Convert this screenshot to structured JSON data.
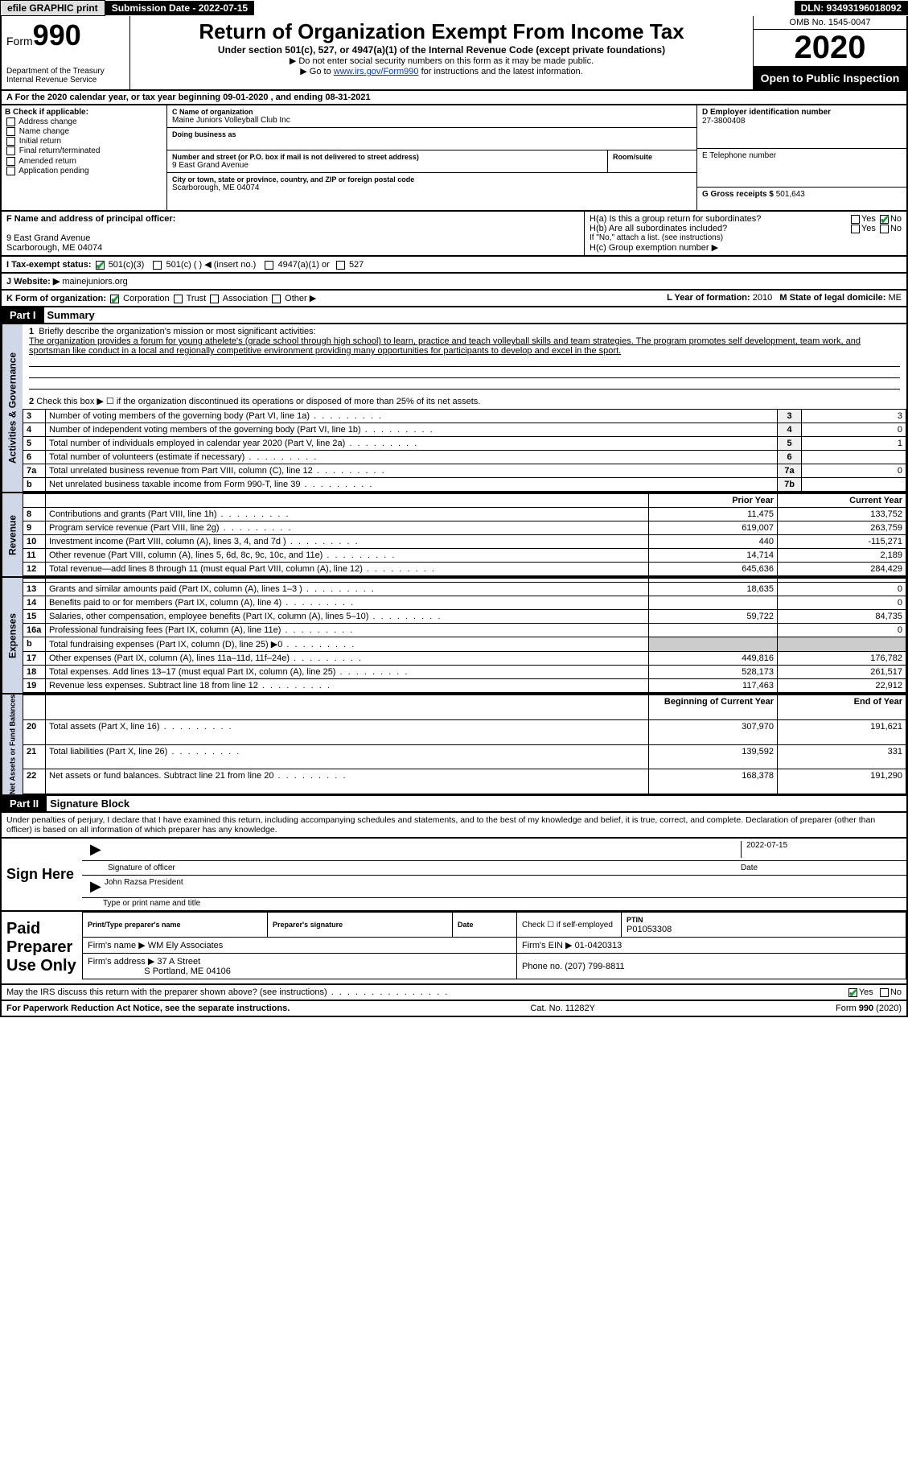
{
  "topbar": {
    "efile": "efile GRAPHIC print",
    "submission_label": "Submission Date - 2022-07-15",
    "dln": "DLN: 93493196018092"
  },
  "header": {
    "form_word": "Form",
    "form_num": "990",
    "dept": "Department of the Treasury\nInternal Revenue Service",
    "title": "Return of Organization Exempt From Income Tax",
    "sub1": "Under section 501(c), 527, or 4947(a)(1) of the Internal Revenue Code (except private foundations)",
    "sub2": "▶ Do not enter social security numbers on this form as it may be made public.",
    "sub3_pre": "▶ Go to ",
    "sub3_link": "www.irs.gov/Form990",
    "sub3_post": " for instructions and the latest information.",
    "omb": "OMB No. 1545-0047",
    "year": "2020",
    "open": "Open to Public Inspection"
  },
  "rowA": {
    "text": "A For the 2020 calendar year, or tax year beginning 09-01-2020    , and ending 08-31-2021"
  },
  "colB": {
    "head": "B Check if applicable:",
    "addr_change": "Address change",
    "name_change": "Name change",
    "initial": "Initial return",
    "final": "Final return/terminated",
    "amended": "Amended return",
    "app_pending": "Application pending"
  },
  "colC": {
    "name_label": "C Name of organization",
    "name": "Maine Juniors Volleyball Club Inc",
    "dba_label": "Doing business as",
    "street_label": "Number and street (or P.O. box if mail is not delivered to street address)",
    "street": "9 East Grand Avenue",
    "room_label": "Room/suite",
    "city_label": "City or town, state or province, country, and ZIP or foreign postal code",
    "city": "Scarborough, ME  04074"
  },
  "colD": {
    "ein_label": "D Employer identification number",
    "ein": "27-3800408",
    "phone_label": "E Telephone number",
    "gross_label": "G Gross receipts $",
    "gross": "501,643"
  },
  "secF": {
    "f_label": "F  Name and address of principal officer:",
    "f_addr1": "9 East Grand Avenue",
    "f_addr2": "Scarborough, ME  04074",
    "ha": "H(a)  Is this a group return for subordinates?",
    "hb": "H(b)  Are all subordinates included?",
    "hb_note": "If \"No,\" attach a list. (see instructions)",
    "hc": "H(c)  Group exemption number ▶",
    "yes": "Yes",
    "no": "No"
  },
  "rowI": {
    "label": "I   Tax-exempt status:",
    "c3": "501(c)(3)",
    "c": "501(c) (  ) ◀ (insert no.)",
    "a1": "4947(a)(1) or",
    "s527": "527"
  },
  "rowJ": {
    "label": "J   Website: ▶",
    "val": "mainejuniors.org"
  },
  "rowK": {
    "label": "K Form of organization:",
    "corp": "Corporation",
    "trust": "Trust",
    "assoc": "Association",
    "other": "Other ▶",
    "l_label": "L Year of formation:",
    "l_val": "2010",
    "m_label": "M State of legal domicile:",
    "m_val": "ME"
  },
  "partI": {
    "head": "Part I",
    "title": "Summary",
    "q1_label": "1",
    "q1": "Briefly describe the organization's mission or most significant activities:",
    "q1_text": "The organization provides a forum for young athelete's (grade school through high school) to learn, practice and teach volleyball skills and team strategies. The program promotes self development, team work, and sportsman like conduct in a local and regionally competitive environment providing many opportunities for participants to develop and excel in the sport.",
    "q2": "Check this box ▶ ☐  if the organization discontinued its operations or disposed of more than 25% of its net assets.",
    "rows_gov": [
      {
        "n": "3",
        "t": "Number of voting members of the governing body (Part VI, line 1a)",
        "c": "3",
        "v": "3"
      },
      {
        "n": "4",
        "t": "Number of independent voting members of the governing body (Part VI, line 1b)",
        "c": "4",
        "v": "0"
      },
      {
        "n": "5",
        "t": "Total number of individuals employed in calendar year 2020 (Part V, line 2a)",
        "c": "5",
        "v": "1"
      },
      {
        "n": "6",
        "t": "Total number of volunteers (estimate if necessary)",
        "c": "6",
        "v": ""
      },
      {
        "n": "7a",
        "t": "Total unrelated business revenue from Part VIII, column (C), line 12",
        "c": "7a",
        "v": "0"
      },
      {
        "n": "b",
        "t": "Net unrelated business taxable income from Form 990-T, line 39",
        "c": "7b",
        "v": ""
      }
    ],
    "tab_gov": "Activities & Governance",
    "tab_rev": "Revenue",
    "tab_exp": "Expenses",
    "tab_net": "Net Assets or Fund Balances",
    "col_prior": "Prior Year",
    "col_curr": "Current Year",
    "rows_rev": [
      {
        "n": "8",
        "t": "Contributions and grants (Part VIII, line 1h)",
        "p": "11,475",
        "c": "133,752"
      },
      {
        "n": "9",
        "t": "Program service revenue (Part VIII, line 2g)",
        "p": "619,007",
        "c": "263,759"
      },
      {
        "n": "10",
        "t": "Investment income (Part VIII, column (A), lines 3, 4, and 7d )",
        "p": "440",
        "c": "-115,271"
      },
      {
        "n": "11",
        "t": "Other revenue (Part VIII, column (A), lines 5, 6d, 8c, 9c, 10c, and 11e)",
        "p": "14,714",
        "c": "2,189"
      },
      {
        "n": "12",
        "t": "Total revenue—add lines 8 through 11 (must equal Part VIII, column (A), line 12)",
        "p": "645,636",
        "c": "284,429"
      }
    ],
    "rows_exp": [
      {
        "n": "13",
        "t": "Grants and similar amounts paid (Part IX, column (A), lines 1–3 )",
        "p": "18,635",
        "c": "0"
      },
      {
        "n": "14",
        "t": "Benefits paid to or for members (Part IX, column (A), line 4)",
        "p": "",
        "c": "0"
      },
      {
        "n": "15",
        "t": "Salaries, other compensation, employee benefits (Part IX, column (A), lines 5–10)",
        "p": "59,722",
        "c": "84,735"
      },
      {
        "n": "16a",
        "t": "Professional fundraising fees (Part IX, column (A), line 11e)",
        "p": "",
        "c": "0"
      },
      {
        "n": "b",
        "t": "Total fundraising expenses (Part IX, column (D), line 25) ▶0",
        "p": "__shade__",
        "c": "__shade__"
      },
      {
        "n": "17",
        "t": "Other expenses (Part IX, column (A), lines 11a–11d, 11f–24e)",
        "p": "449,816",
        "c": "176,782"
      },
      {
        "n": "18",
        "t": "Total expenses. Add lines 13–17 (must equal Part IX, column (A), line 25)",
        "p": "528,173",
        "c": "261,517"
      },
      {
        "n": "19",
        "t": "Revenue less expenses. Subtract line 18 from line 12",
        "p": "117,463",
        "c": "22,912"
      }
    ],
    "col_begin": "Beginning of Current Year",
    "col_end": "End of Year",
    "rows_net": [
      {
        "n": "20",
        "t": "Total assets (Part X, line 16)",
        "p": "307,970",
        "c": "191,621"
      },
      {
        "n": "21",
        "t": "Total liabilities (Part X, line 26)",
        "p": "139,592",
        "c": "331"
      },
      {
        "n": "22",
        "t": "Net assets or fund balances. Subtract line 21 from line 20",
        "p": "168,378",
        "c": "191,290"
      }
    ]
  },
  "partII": {
    "head": "Part II",
    "title": "Signature Block",
    "decl": "Under penalties of perjury, I declare that I have examined this return, including accompanying schedules and statements, and to the best of my knowledge and belief, it is true, correct, and complete. Declaration of preparer (other than officer) is based on all information of which preparer has any knowledge.",
    "sign_here": "Sign Here",
    "sig_officer": "Signature of officer",
    "sig_date": "2022-07-15",
    "date_label": "Date",
    "name_title": "John Razsa  President",
    "name_title_label": "Type or print name and title",
    "paid_label": "Paid Preparer Use Only",
    "pp_name_label": "Print/Type preparer's name",
    "pp_sig_label": "Preparer's signature",
    "pp_date_label": "Date",
    "pp_check": "Check ☐ if self-employed",
    "ptin_label": "PTIN",
    "ptin": "P01053308",
    "firm_name_label": "Firm's name    ▶",
    "firm_name": "WM Ely Associates",
    "firm_ein_label": "Firm's EIN ▶",
    "firm_ein": "01-0420313",
    "firm_addr_label": "Firm's address ▶",
    "firm_addr1": "37 A Street",
    "firm_addr2": "S Portland, ME  04106",
    "phone_label": "Phone no.",
    "phone": "(207) 799-8811",
    "may_irs": "May the IRS discuss this return with the preparer shown above? (see instructions)",
    "yes": "Yes",
    "no": "No"
  },
  "footer": {
    "pra": "For Paperwork Reduction Act Notice, see the separate instructions.",
    "cat": "Cat. No. 11282Y",
    "form": "Form 990 (2020)"
  },
  "colors": {
    "link": "#0040b0",
    "check": "#1a9e3e",
    "vtab_bg": "#d0d8e8"
  }
}
